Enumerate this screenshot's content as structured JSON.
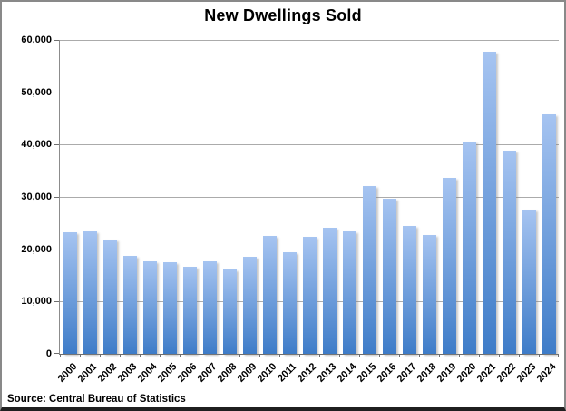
{
  "chart_data": {
    "type": "bar",
    "title": "New Dwellings Sold",
    "xlabel": "",
    "ylabel": "",
    "categories": [
      "2000",
      "2001",
      "2002",
      "2003",
      "2004",
      "2005",
      "2006",
      "2007",
      "2008",
      "2009",
      "2010",
      "2011",
      "2012",
      "2013",
      "2014",
      "2015",
      "2016",
      "2017",
      "2018",
      "2019",
      "2020",
      "2021",
      "2022",
      "2023",
      "2024"
    ],
    "values": [
      23200,
      23400,
      21900,
      18700,
      17700,
      17600,
      16700,
      17700,
      16200,
      18600,
      22600,
      19400,
      22400,
      24100,
      23400,
      32100,
      29700,
      24400,
      22800,
      33700,
      40500,
      57700,
      38900,
      27500,
      45800
    ],
    "ylim": [
      0,
      60000
    ],
    "ytick_values": [
      0,
      10000,
      20000,
      30000,
      40000,
      50000,
      60000
    ],
    "ytick_labels": [
      "0",
      "10,000",
      "20,000",
      "30,000",
      "40,000",
      "50,000",
      "60,000"
    ],
    "grid": "horizontal",
    "legend": "none",
    "x_label_rotation_deg": 45,
    "source_note": "Source: Central Bureau of Statistics",
    "colors": {
      "bar_gradient_top": "#A6C4F1",
      "bar_gradient_bottom": "#3E7CC8",
      "gridline": "#ABABAB",
      "axis": "#6E6E6E",
      "tick": "#6E6E6E",
      "text": "#000000",
      "frame_border": "#898989",
      "frame_border_bottom": "#1F1F1F",
      "background": "#FFFFFF"
    }
  }
}
